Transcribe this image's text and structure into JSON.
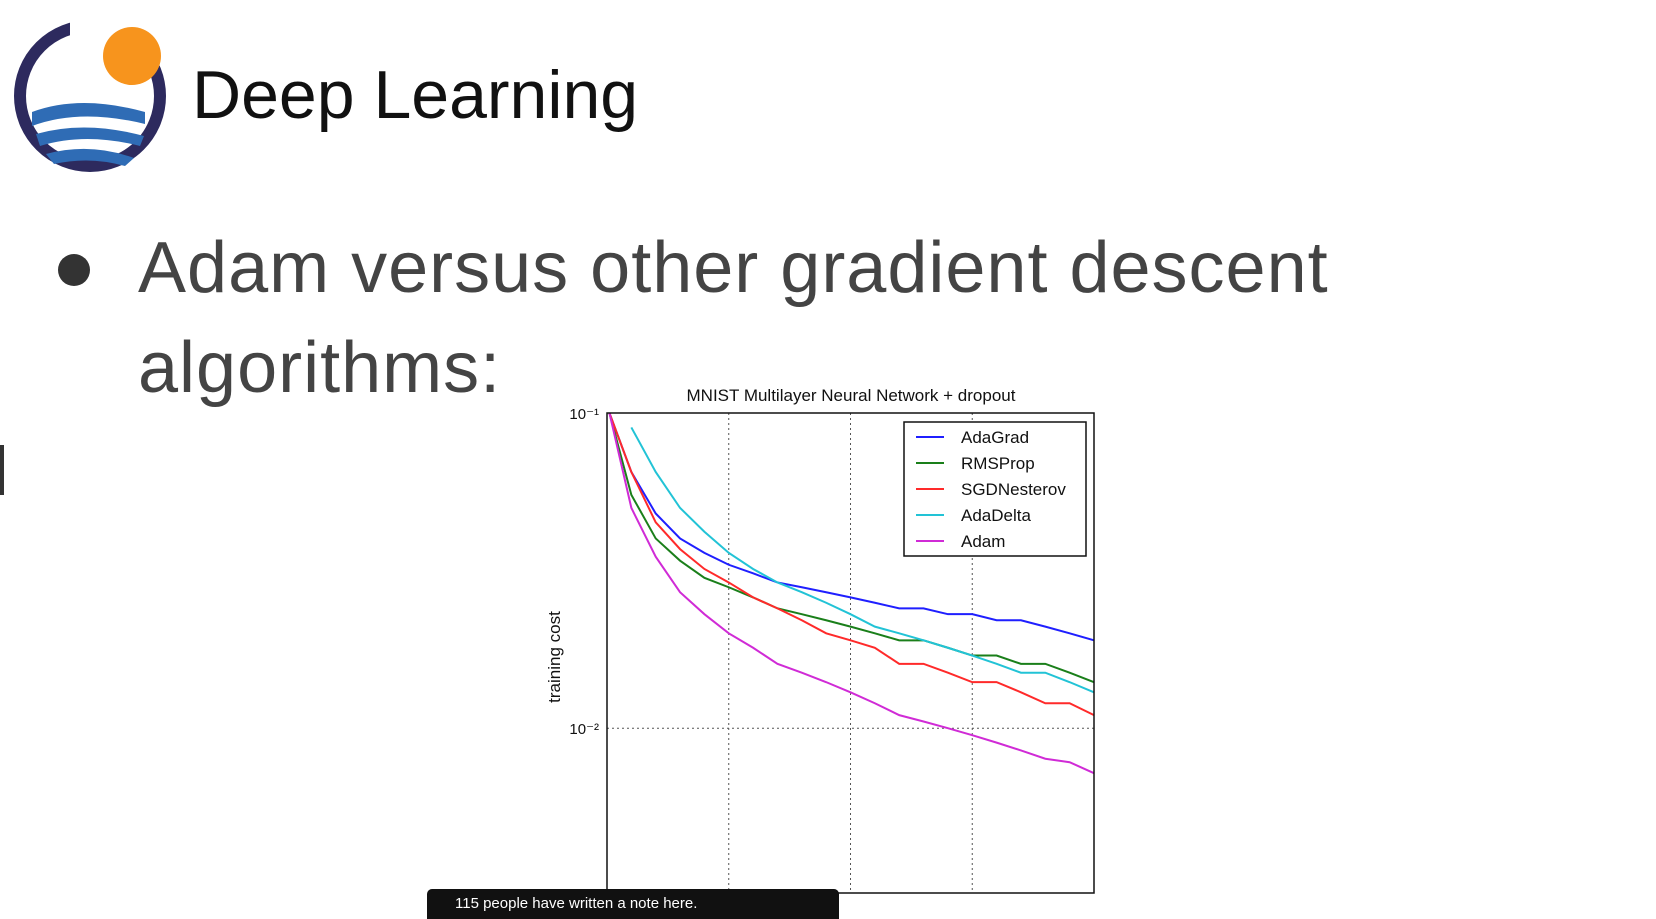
{
  "header": {
    "title": "Deep Learning"
  },
  "bullets": [
    "Adam versus other gradient descent algorithms:"
  ],
  "chart": {
    "type": "line",
    "title": "MNIST Multilayer Neural Network + dropout",
    "y_label": "training cost",
    "x": [
      1,
      10,
      20,
      30,
      40,
      50,
      60,
      70,
      80,
      90,
      100,
      110,
      120,
      130,
      140,
      150,
      160,
      170,
      180,
      190,
      200
    ],
    "series": [
      {
        "name": "AdaGrad",
        "color": "#1f1fff",
        "values": [
          0.1,
          0.065,
          0.048,
          0.04,
          0.036,
          0.033,
          0.031,
          0.029,
          0.028,
          0.027,
          0.026,
          0.025,
          0.024,
          0.024,
          0.023,
          0.023,
          0.022,
          0.022,
          0.021,
          0.02,
          0.019
        ]
      },
      {
        "name": "RMSProp",
        "color": "#1a7f1a",
        "values": [
          0.1,
          0.055,
          0.04,
          0.034,
          0.03,
          0.028,
          0.026,
          0.024,
          0.023,
          0.022,
          0.021,
          0.02,
          0.019,
          0.019,
          0.018,
          0.017,
          0.017,
          0.016,
          0.016,
          0.015,
          0.014
        ]
      },
      {
        "name": "SGDNesterov",
        "color": "#ff2a2a",
        "values": [
          0.1,
          0.065,
          0.045,
          0.037,
          0.032,
          0.029,
          0.026,
          0.024,
          0.022,
          0.02,
          0.019,
          0.018,
          0.016,
          0.016,
          0.015,
          0.014,
          0.014,
          0.013,
          0.012,
          0.012,
          0.011
        ]
      },
      {
        "name": "AdaDelta",
        "color": "#22c3d6",
        "values": [
          null,
          0.09,
          0.065,
          0.05,
          0.042,
          0.036,
          0.032,
          0.029,
          0.027,
          0.025,
          0.023,
          0.021,
          0.02,
          0.019,
          0.018,
          0.017,
          0.016,
          0.015,
          0.015,
          0.014,
          0.013
        ]
      },
      {
        "name": "Adam",
        "color": "#d02bd6",
        "values": [
          0.1,
          0.05,
          0.035,
          0.027,
          0.023,
          0.02,
          0.018,
          0.016,
          0.015,
          0.014,
          0.013,
          0.012,
          0.011,
          0.0105,
          0.01,
          0.0095,
          0.009,
          0.0085,
          0.008,
          0.0078,
          0.0072
        ]
      }
    ],
    "xlim": [
      0,
      200
    ],
    "ylim": [
      0.003,
      0.1
    ],
    "log_y": true,
    "grid": true,
    "legend": "upper right",
    "xticks": [
      50,
      100,
      150,
      200
    ],
    "yticks": [
      {
        "value": 0.1,
        "label": "10⁻¹"
      },
      {
        "value": 0.01,
        "label": "10⁻²"
      }
    ]
  },
  "overlay": {
    "note": "115 people have written a note here."
  }
}
